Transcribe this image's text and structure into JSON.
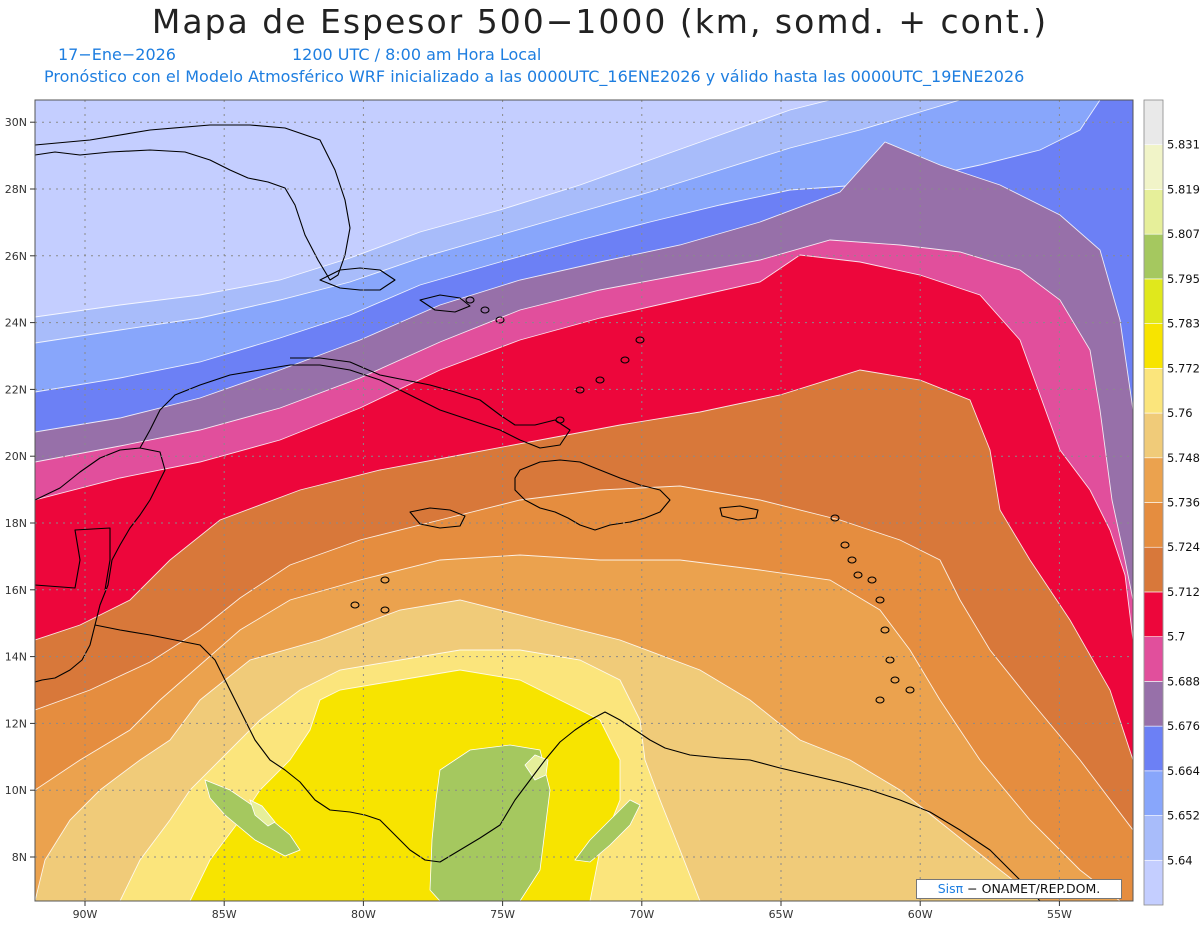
{
  "header": {
    "title": "Mapa de Espesor 500−1000 (km, somd. + cont.)",
    "date": "17−Ene−2026",
    "time": "1200 UTC / 8:00 am Hora Local",
    "forecast_line": "Pronóstico con el Modelo Atmosférico WRF inicializado a las 0000UTC_16ENE2026 y válido hasta las 0000UTC_19ENE2026"
  },
  "map": {
    "lat_labels": [
      "8N",
      "10N",
      "12N",
      "14N",
      "16N",
      "18N",
      "20N",
      "22N",
      "24N",
      "26N",
      "28N",
      "30N"
    ],
    "lon_labels": [
      "90W",
      "85W",
      "80W",
      "75W",
      "70W",
      "65W",
      "60W",
      "55W"
    ],
    "grid": "dotted"
  },
  "colorbar": {
    "levels": [
      "5.64",
      "5.652",
      "5.664",
      "5.676",
      "5.688",
      "5.7",
      "5.712",
      "5.724",
      "5.736",
      "5.748",
      "5.76",
      "5.772",
      "5.783",
      "5.795",
      "5.807",
      "5.819",
      "5.831"
    ],
    "colors": [
      "#c4ceff",
      "#a8bcfa",
      "#88a6fb",
      "#6c80f5",
      "#9770a9",
      "#e14f9c",
      "#ed063b",
      "#d8783a",
      "#e58d3f",
      "#eba24e",
      "#f0cb79",
      "#fbe57c",
      "#f7e400",
      "#e0e81c",
      "#a5c85f",
      "#e6ef9a",
      "#f1f4c8",
      "#e9e9e9"
    ]
  },
  "credit": {
    "logo": "Sisπ",
    "text": "− ONAMET/REP.DOM."
  }
}
